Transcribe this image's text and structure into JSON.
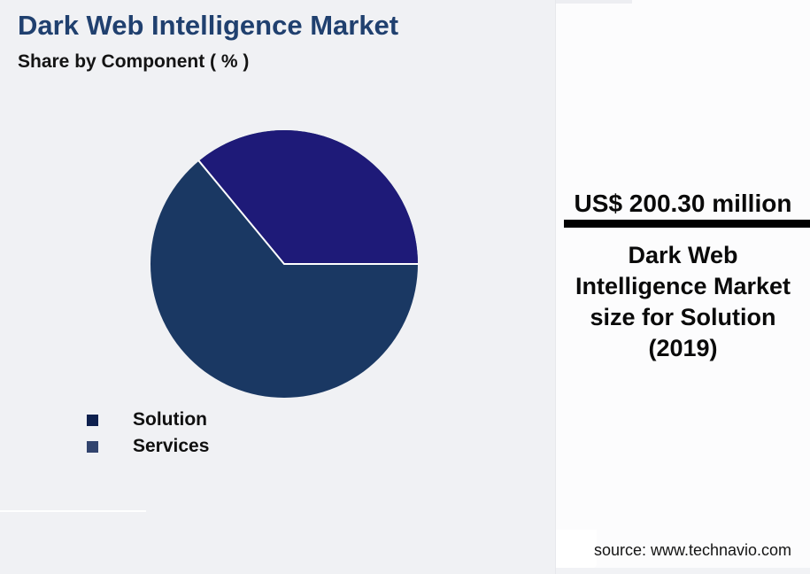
{
  "header": {
    "title": "Dark Web Intelligence Market",
    "subtitle": "Share by Component ( % )"
  },
  "chart_data": {
    "type": "pie",
    "title": "Dark Web Intelligence Market Share by Component (%)",
    "labels": [
      "Solution",
      "Services"
    ],
    "values": [
      64,
      36
    ],
    "slice_colors": {
      "Solution": "#1a3863",
      "Services": "#1e1a78"
    },
    "slice_border_color": "#ffffff",
    "start_angle_deg": 0,
    "direction": "counterclockwise",
    "legend_position": "bottom-left",
    "legend": [
      {
        "label": "Solution",
        "marker_color": "#0e204e"
      },
      {
        "label": "Services",
        "marker_color": "#32446e"
      }
    ]
  },
  "side_panel": {
    "headline_value": "US$ 200.30 million",
    "description": "Dark Web Intelligence Market size for Solution (2019)",
    "source": "source: www.technavio.com"
  },
  "colors": {
    "page_background": "#f0f1f4",
    "panel_background": "#fcfcfd",
    "title_text": "#20406f",
    "body_text": "#0a0a0a",
    "divider_bar": "#010101"
  }
}
